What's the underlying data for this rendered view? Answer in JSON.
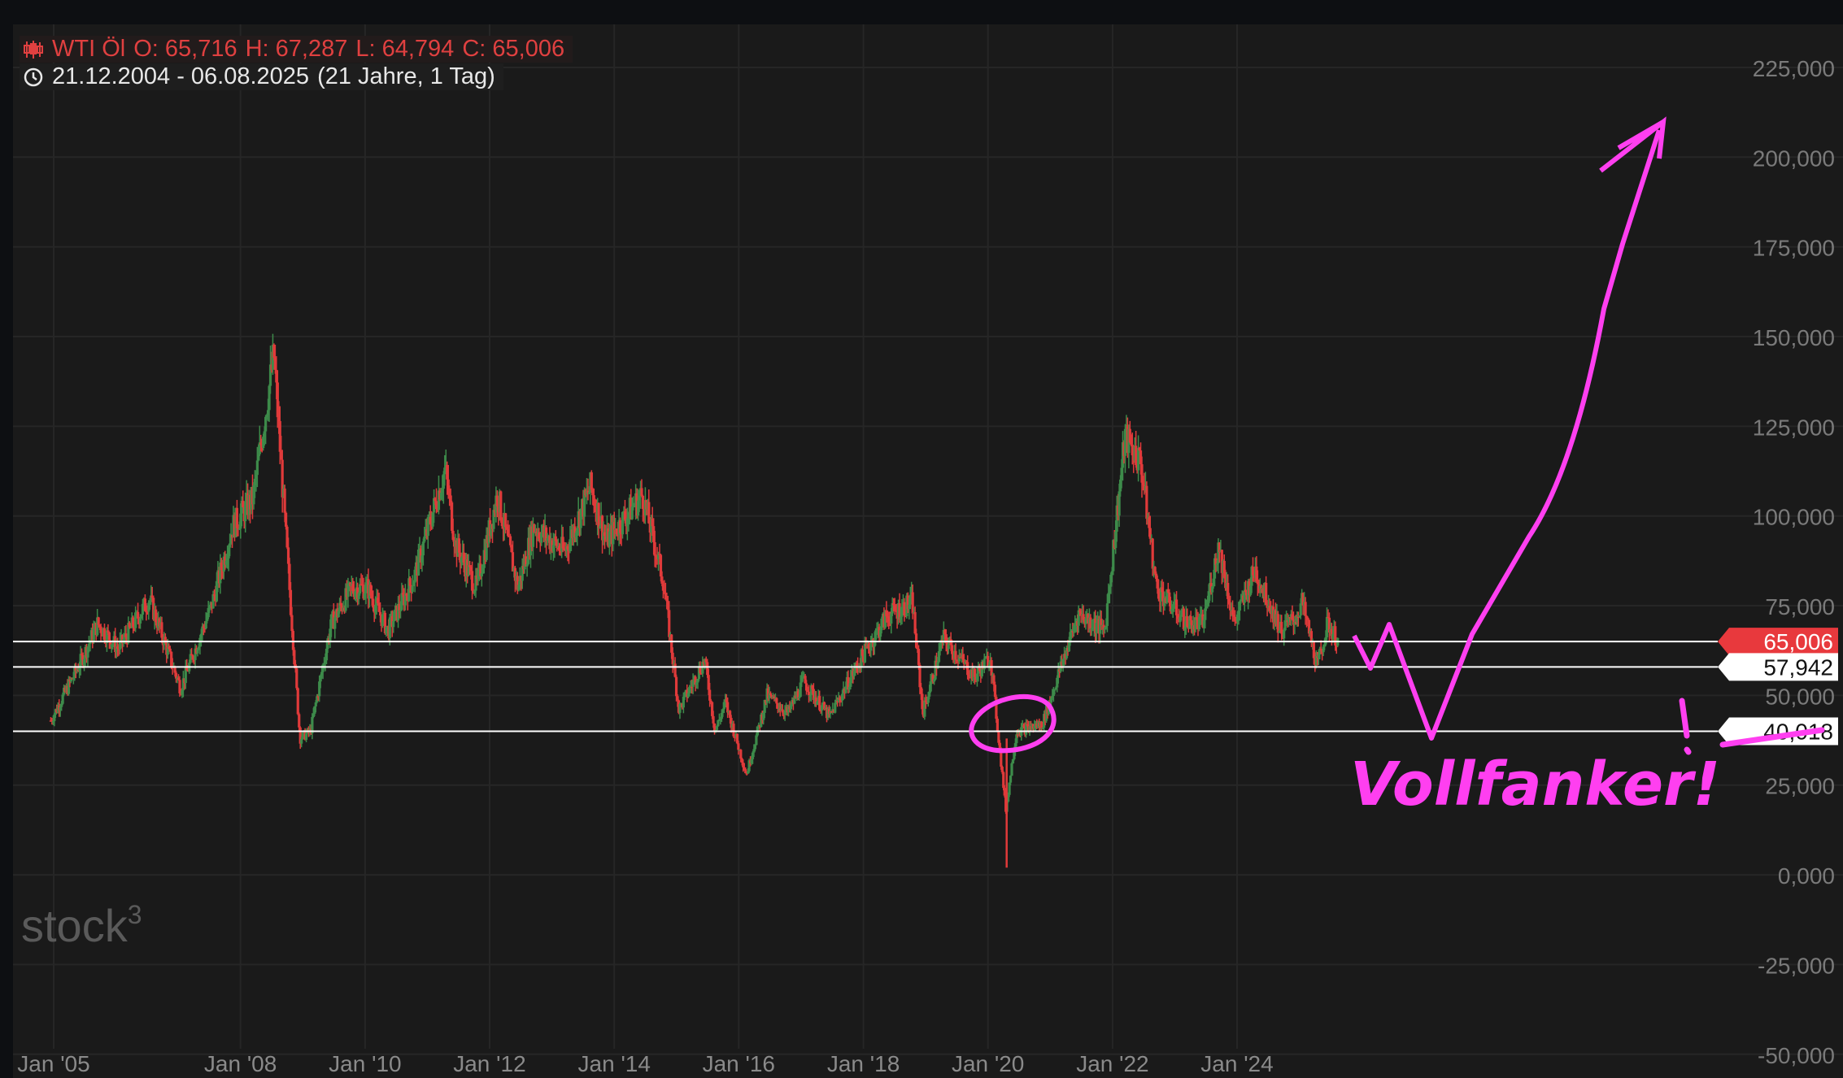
{
  "header": {
    "instrument": "WTI Öl",
    "open_label": "O:",
    "open": "65,716",
    "high_label": "H:",
    "high": "67,287",
    "low_label": "L:",
    "low": "64,794",
    "close_label": "C:",
    "close": "65,006",
    "date_range": "21.12.2004 - 06.08.2025",
    "period": "(21 Jahre, 1 Tag)",
    "icons": [
      "candlestick-icon",
      "clock-icon"
    ]
  },
  "watermark": {
    "text": "stock",
    "superscript": "3"
  },
  "annotation": {
    "text": "Vollfanker!",
    "color": "#ff3ff0"
  },
  "colors": {
    "background": "#1a1a1a",
    "up": "#3d8b4a",
    "down": "#e03a3a",
    "last_price_badge": "#e8393d",
    "annotation": "#ff3ff0"
  },
  "chart_data": {
    "type": "candlestick",
    "title": "WTI Öl",
    "x_range": [
      "2004-12-21",
      "2025-08-06"
    ],
    "x_ticks": [
      "Jan '05",
      "Jan '08",
      "Jan '10",
      "Jan '12",
      "Jan '14",
      "Jan '16",
      "Jan '18",
      "Jan '20",
      "Jan '22",
      "Jan '24"
    ],
    "x_tick_dates": [
      "2005-01-01",
      "2008-01-01",
      "2010-01-01",
      "2012-01-01",
      "2014-01-01",
      "2016-01-01",
      "2018-01-01",
      "2020-01-01",
      "2022-01-01",
      "2024-01-01"
    ],
    "y_ticks": [
      "225,000",
      "200,000",
      "175,000",
      "150,000",
      "125,000",
      "100,000",
      "75,000",
      "50,000",
      "25,000",
      "0,000",
      "-25,000",
      "-50,000"
    ],
    "y_tick_values": [
      225,
      200,
      175,
      150,
      125,
      100,
      75,
      50,
      25,
      0,
      -25,
      -50
    ],
    "ylim": [
      -53,
      237
    ],
    "grid": true,
    "horizontal_lines": [
      {
        "value": 65.006,
        "label": "65,006",
        "badge": "red"
      },
      {
        "value": 57.942,
        "label": "57,942",
        "badge": "white"
      },
      {
        "value": 40.018,
        "label": "40,018",
        "badge": "white"
      }
    ],
    "series": [
      {
        "x": [
          "2004-12",
          "2005-06",
          "2005-09",
          "2006-01",
          "2006-07",
          "2007-01",
          "2007-07",
          "2007-11",
          "2008-03",
          "2008-07",
          "2008-09",
          "2008-12",
          "2009-02",
          "2009-06",
          "2009-10",
          "2010-01",
          "2010-05",
          "2010-10",
          "2011-04",
          "2011-06",
          "2011-10",
          "2012-02",
          "2012-06",
          "2012-09",
          "2013-03",
          "2013-08",
          "2013-11",
          "2014-06",
          "2014-10",
          "2015-01",
          "2015-06",
          "2015-08",
          "2015-10",
          "2016-02",
          "2016-06",
          "2016-10",
          "2017-01",
          "2017-06",
          "2017-12",
          "2018-05",
          "2018-10",
          "2018-12",
          "2019-04",
          "2019-10",
          "2020-01",
          "2020-04",
          "2020-06",
          "2020-11",
          "2021-06",
          "2021-11",
          "2022-03",
          "2022-06",
          "2022-09",
          "2022-12",
          "2023-03",
          "2023-06",
          "2023-09",
          "2023-12",
          "2024-04",
          "2024-09",
          "2024-12",
          "2025-01",
          "2025-04",
          "2025-06",
          "2025-08"
        ],
        "y": [
          43,
          60,
          70,
          63,
          77,
          52,
          75,
          97,
          105,
          145,
          100,
          38,
          40,
          70,
          80,
          80,
          68,
          83,
          113,
          92,
          80,
          106,
          80,
          97,
          90,
          108,
          93,
          106,
          82,
          46,
          60,
          40,
          48,
          28,
          50,
          45,
          54,
          44,
          60,
          72,
          76,
          45,
          66,
          55,
          61,
          18,
          40,
          42,
          73,
          68,
          122,
          115,
          80,
          75,
          70,
          70,
          92,
          70,
          85,
          68,
          72,
          76,
          58,
          70,
          65
        ],
        "low_2020": 2.0
      }
    ]
  }
}
